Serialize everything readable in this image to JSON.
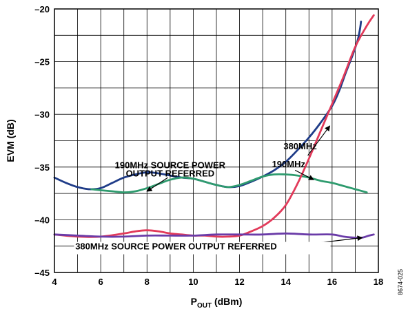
{
  "chart_data": {
    "type": "line",
    "xlim": [
      4,
      18
    ],
    "ylim": [
      -45,
      -20
    ],
    "x_ticks": [
      4,
      6,
      8,
      10,
      12,
      14,
      16,
      18
    ],
    "y_ticks": [
      -20,
      -25,
      -30,
      -35,
      -40,
      -45
    ],
    "x_tick_labels": [
      "4",
      "6",
      "8",
      "10",
      "12",
      "14",
      "16",
      "18"
    ],
    "y_tick_labels": [
      "–20",
      "–25",
      "–30",
      "–35",
      "–40",
      "–45"
    ],
    "xlabel_main": "P",
    "xlabel_sub": "OUT",
    "xlabel_unit": " (dBm)",
    "ylabel": "EVM (dB)",
    "grid": true,
    "figure_id": "8674-025",
    "annotations": [
      {
        "text": "380MHz",
        "x": 13.9,
        "y": -33.3
      },
      {
        "text": "190MHz",
        "x": 13.4,
        "y": -35.0
      },
      {
        "text": "190MHz SOURCE POWER",
        "x": 9.0,
        "y": -35.1
      },
      {
        "text": "OUTPUT REFERRED",
        "x": 9.0,
        "y": -35.9
      },
      {
        "text": "380MHz SOURCE POWER OUTPUT REFERRED",
        "x": 4.9,
        "y": -42.8
      }
    ],
    "series": [
      {
        "color": "#1f3c88",
        "x": [
          4.0,
          4.5,
          5.0,
          5.5,
          6.0,
          6.5,
          7.0,
          7.5,
          8.0,
          8.5,
          9.0,
          9.5,
          10.0,
          10.5,
          11.0,
          11.5,
          12.0,
          12.5,
          13.0,
          13.5,
          14.0,
          14.5,
          15.0,
          15.5,
          16.0,
          16.3,
          16.6,
          16.9,
          17.1,
          17.2,
          17.25
        ],
        "y": [
          -36.0,
          -36.5,
          -36.9,
          -37.1,
          -37.0,
          -36.5,
          -36.0,
          -35.7,
          -35.5,
          -35.6,
          -35.8,
          -36.0,
          -36.1,
          -36.4,
          -36.7,
          -36.9,
          -36.8,
          -36.4,
          -35.9,
          -35.3,
          -34.5,
          -33.4,
          -32.2,
          -30.8,
          -29.2,
          -27.8,
          -26.0,
          -24.3,
          -23.0,
          -22.0,
          -21.2
        ]
      },
      {
        "color": "#2e9b6e",
        "x": [
          5.6,
          6.0,
          6.5,
          7.0,
          7.5,
          8.0,
          8.5,
          9.0,
          9.5,
          10.0,
          10.5,
          11.0,
          11.5,
          12.0,
          12.5,
          13.0,
          13.5,
          14.0,
          14.5,
          15.0,
          15.5,
          16.0,
          16.5,
          17.0,
          17.5
        ],
        "y": [
          -37.1,
          -37.2,
          -37.3,
          -37.4,
          -37.3,
          -37.0,
          -36.6,
          -36.2,
          -36.0,
          -36.1,
          -36.4,
          -36.7,
          -36.9,
          -36.7,
          -36.3,
          -35.9,
          -35.7,
          -35.7,
          -35.8,
          -36.0,
          -36.3,
          -36.5,
          -36.8,
          -37.1,
          -37.4
        ]
      },
      {
        "color": "#e23a5a",
        "x": [
          4.0,
          5.0,
          6.0,
          7.0,
          7.5,
          8.0,
          8.5,
          9.0,
          9.5,
          10.0,
          10.5,
          11.0,
          11.5,
          12.0,
          12.5,
          13.0,
          13.5,
          14.0,
          14.5,
          15.0,
          15.5,
          16.0,
          16.5,
          17.0,
          17.5,
          17.8
        ],
        "y": [
          -41.4,
          -41.6,
          -41.6,
          -41.3,
          -41.1,
          -41.0,
          -41.1,
          -41.3,
          -41.4,
          -41.5,
          -41.5,
          -41.6,
          -41.6,
          -41.5,
          -41.1,
          -40.6,
          -39.8,
          -38.6,
          -36.6,
          -34.2,
          -31.6,
          -29.0,
          -26.4,
          -23.6,
          -21.6,
          -20.6
        ]
      },
      {
        "color": "#6a3ba8",
        "x": [
          4.0,
          5.0,
          6.0,
          7.0,
          8.0,
          9.0,
          10.0,
          11.0,
          12.0,
          13.0,
          14.0,
          15.0,
          16.0,
          16.5,
          17.0,
          17.3,
          17.6,
          17.8
        ],
        "y": [
          -41.4,
          -41.5,
          -41.6,
          -41.6,
          -41.5,
          -41.5,
          -41.5,
          -41.4,
          -41.4,
          -41.4,
          -41.3,
          -41.4,
          -41.4,
          -41.6,
          -41.7,
          -41.7,
          -41.5,
          -41.4
        ]
      }
    ]
  }
}
